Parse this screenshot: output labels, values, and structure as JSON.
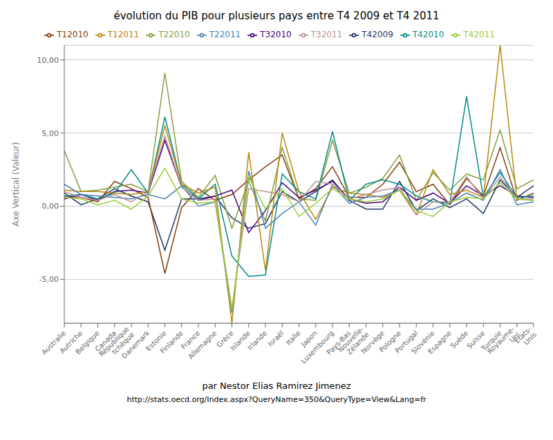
{
  "chart_data": {
    "type": "line",
    "title": "évolution du PIB pour plusieurs pays entre T4 2009 et T4 2011",
    "ylabel": "Axe Vertical (Valeur)",
    "annotations": [
      "par Nestor Elias Ramirez Jimenez",
      "http://stats.oecd.org/Index.aspx?QueryName=350&QueryType=View&Lang=fr"
    ],
    "categories": [
      "Australie",
      "Autriche",
      "Belgique",
      "Canada",
      "République\ntchèque",
      "Danemark",
      "Estonie",
      "Finlande",
      "France",
      "Allemagne",
      "Grèce",
      "Islande",
      "Irlande",
      "Israël",
      "Italie",
      "Japon",
      "Luxembourg",
      "Pays-Bas",
      "Nouvelle-\nZélande",
      "Norvège",
      "Pologne",
      "Portugal",
      "Slovénie",
      "Espagne",
      "Suède",
      "Suisse",
      "Turquie",
      "Royaume-\nUni",
      "États-\nUnis"
    ],
    "series": [
      {
        "name": "T42009",
        "color": "#1F3864",
        "values": [
          0.9,
          0.1,
          0.5,
          1.2,
          0.7,
          0.3,
          -3.0,
          0.5,
          0.5,
          0.7,
          -0.8,
          -1.5,
          -1.2,
          1.0,
          0.3,
          1.0,
          1.8,
          0.4,
          -0.2,
          -0.2,
          1.7,
          -0.3,
          0.5,
          -0.1,
          0.5,
          -0.5,
          1.8,
          0.6,
          1.4
        ]
      },
      {
        "name": "T12010",
        "color": "#843C0C",
        "values": [
          0.7,
          0.6,
          0.3,
          1.7,
          1.2,
          0.6,
          -4.6,
          -0.1,
          1.2,
          0.4,
          0.8,
          1.8,
          2.7,
          3.5,
          0.5,
          1.2,
          2.7,
          0.6,
          0.6,
          1.5,
          3.0,
          1.0,
          1.5,
          0.1,
          1.9,
          0.7,
          4.0,
          0.4,
          0.9
        ]
      },
      {
        "name": "T22010",
        "color": "#7F9F3F",
        "values": [
          3.8,
          1.0,
          1.1,
          1.3,
          1.5,
          1.0,
          9.1,
          1.7,
          0.6,
          2.1,
          -1.5,
          1.7,
          -1.0,
          4.0,
          0.5,
          0.4,
          4.5,
          0.9,
          1.3,
          1.9,
          3.5,
          0.4,
          2.3,
          1.1,
          2.2,
          1.8,
          5.2,
          1.2,
          1.8
        ]
      },
      {
        "name": "T32010",
        "color": "#4B0082",
        "values": [
          0.5,
          0.8,
          0.4,
          1.0,
          1.1,
          0.9,
          4.5,
          1.3,
          0.4,
          0.7,
          1.1,
          -1.8,
          -0.3,
          1.6,
          0.6,
          1.1,
          1.7,
          0.5,
          0.2,
          0.3,
          1.3,
          0.4,
          0.9,
          0.2,
          1.4,
          0.7,
          1.4,
          0.7,
          0.6
        ]
      },
      {
        "name": "T42010",
        "color": "#008B8B",
        "values": [
          0.7,
          0.8,
          0.5,
          0.9,
          2.5,
          0.9,
          6.1,
          1.5,
          0.5,
          1.5,
          -3.4,
          -4.8,
          -4.7,
          2.2,
          1.0,
          0.5,
          5.1,
          0.4,
          1.5,
          1.8,
          1.5,
          0.7,
          0.3,
          0.2,
          7.5,
          0.6,
          2.3,
          0.6,
          0.7
        ]
      },
      {
        "name": "T12011",
        "color": "#B8860B",
        "values": [
          1.1,
          1.0,
          1.0,
          0.9,
          0.8,
          1.0,
          5.5,
          1.5,
          0.9,
          1.3,
          -8.0,
          3.7,
          -4.4,
          5.0,
          1.0,
          -0.9,
          1.3,
          0.9,
          0.8,
          0.6,
          1.1,
          -0.6,
          2.5,
          0.8,
          1.1,
          0.6,
          11.0,
          0.5,
          0.4
        ]
      },
      {
        "name": "T22011",
        "color": "#4682B4",
        "values": [
          1.5,
          0.8,
          0.7,
          0.6,
          0.5,
          0.8,
          0.5,
          1.4,
          0.0,
          0.3,
          -7.3,
          2.4,
          -1.5,
          -0.5,
          0.3,
          -1.3,
          1.5,
          0.2,
          0.6,
          0.7,
          1.1,
          -0.2,
          -0.2,
          0.2,
          0.9,
          0.4,
          2.5,
          0.1,
          0.3
        ]
      },
      {
        "name": "T32011",
        "color": "#BC8F8F",
        "values": [
          1.0,
          0.6,
          0.4,
          0.8,
          0.3,
          1.0,
          4.8,
          1.3,
          0.4,
          0.5,
          -7.0,
          1.2,
          1.0,
          0.8,
          0.3,
          1.7,
          1.5,
          0.5,
          0.8,
          1.1,
          1.3,
          -0.6,
          0.3,
          0.3,
          2.0,
          0.5,
          2.0,
          0.5,
          0.5
        ]
      },
      {
        "name": "T42011",
        "color": "#9ACD32",
        "values": [
          0.6,
          0.5,
          0.1,
          0.4,
          -0.2,
          0.7,
          2.6,
          0.5,
          0.2,
          0.3,
          -7.1,
          2.0,
          -0.2,
          1.2,
          -0.7,
          0.2,
          1.2,
          0.5,
          0.3,
          0.5,
          1.1,
          -0.3,
          -0.7,
          0.3,
          0.6,
          0.5,
          1.6,
          0.5,
          0.4
        ]
      }
    ],
    "ylim": [
      -8,
      11
    ],
    "yticks": [
      {
        "value": -5.0,
        "label": "-5,00"
      },
      {
        "value": 0.0,
        "label": "0,00"
      },
      {
        "value": 5.0,
        "label": "5,00"
      },
      {
        "value": 10.0,
        "label": "10,00"
      }
    ],
    "grid": true,
    "legend": "top"
  }
}
